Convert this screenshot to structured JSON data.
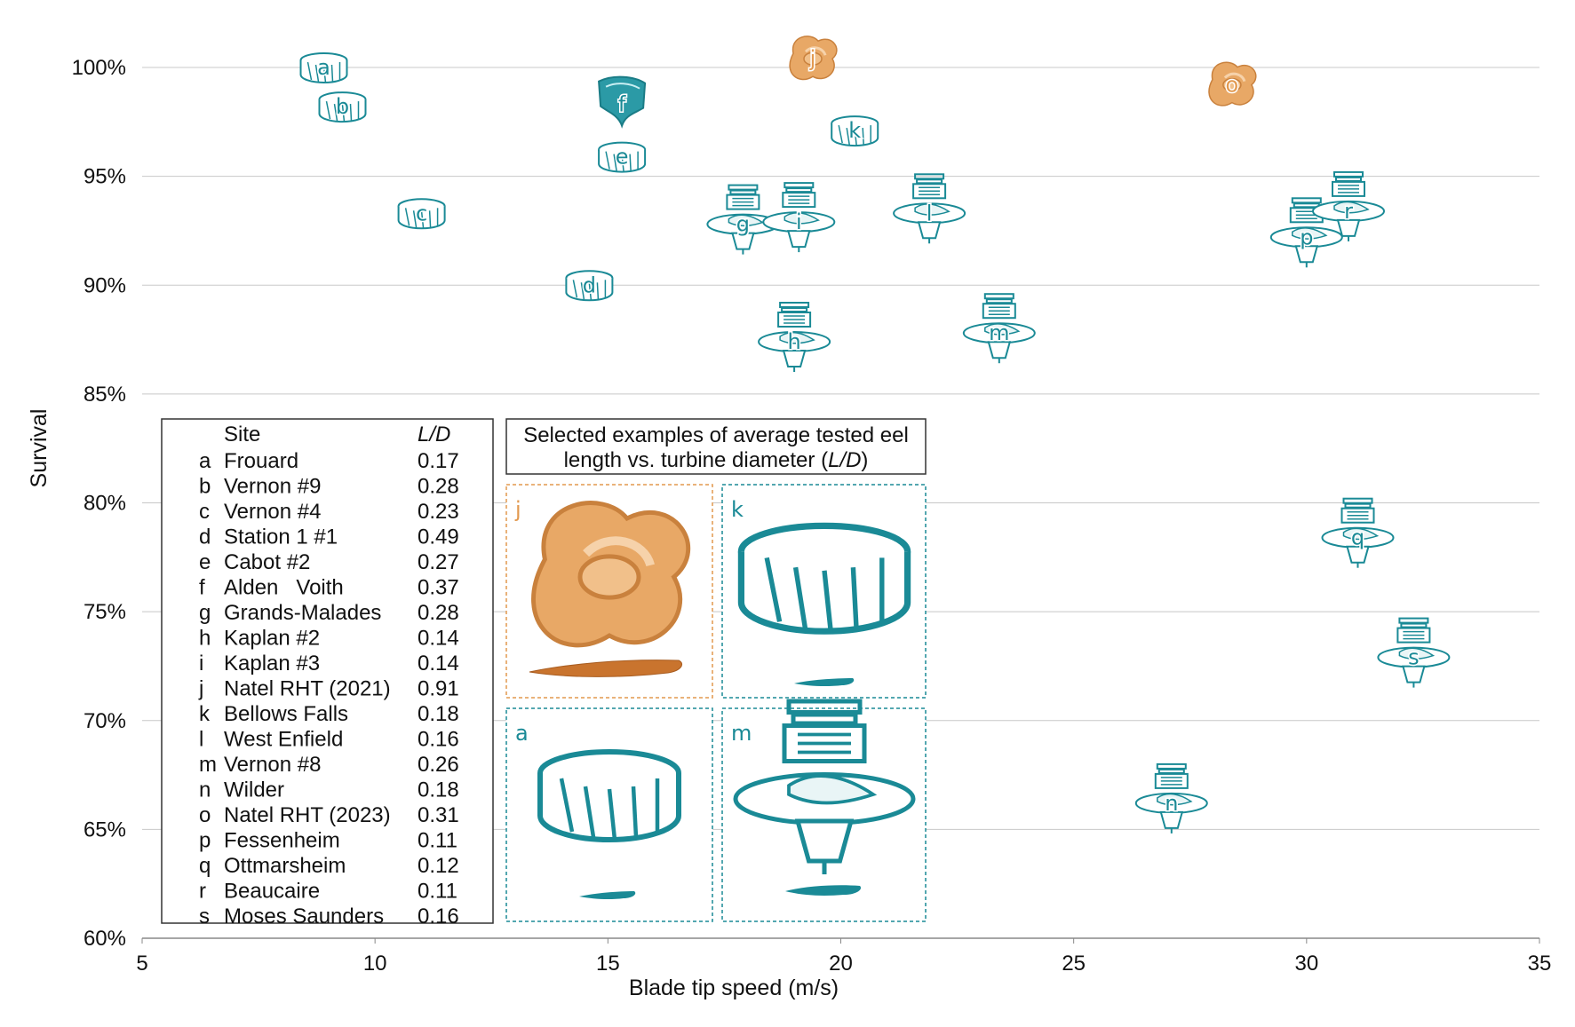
{
  "chart_data": {
    "type": "scatter",
    "title": "",
    "xlabel": "Blade tip speed (m/s)",
    "ylabel": "Survival",
    "xlim": [
      5,
      35
    ],
    "ylim": [
      60,
      100
    ],
    "x_ticks": [
      "5",
      "10",
      "15",
      "20",
      "25",
      "30",
      "35"
    ],
    "y_ticks": [
      "60%",
      "65%",
      "70%",
      "75%",
      "80%",
      "85%",
      "90%",
      "95%",
      "100%"
    ],
    "grid": "horizontal",
    "points": [
      {
        "letter": "a",
        "x": 8.9,
        "y": 100.0,
        "color": "#1a8a96",
        "icon": "francis-runner-icon"
      },
      {
        "letter": "b",
        "x": 9.3,
        "y": 98.2,
        "color": "#1a8a96",
        "icon": "francis-runner-icon"
      },
      {
        "letter": "c",
        "x": 11.0,
        "y": 93.3,
        "color": "#1a8a96",
        "icon": "francis-runner-icon"
      },
      {
        "letter": "d",
        "x": 14.6,
        "y": 90.0,
        "color": "#1a8a96",
        "icon": "francis-runner-icon"
      },
      {
        "letter": "e",
        "x": 15.3,
        "y": 95.9,
        "color": "#1a8a96",
        "icon": "francis-runner-icon"
      },
      {
        "letter": "f",
        "x": 15.3,
        "y": 98.3,
        "color": "#1a8a96",
        "icon": "alden-runner-icon"
      },
      {
        "letter": "g",
        "x": 17.9,
        "y": 92.8,
        "color": "#1a8a96",
        "icon": "kaplan-turbine-icon"
      },
      {
        "letter": "h",
        "x": 19.0,
        "y": 87.4,
        "color": "#1a8a96",
        "icon": "kaplan-turbine-icon"
      },
      {
        "letter": "i",
        "x": 19.1,
        "y": 92.9,
        "color": "#1a8a96",
        "icon": "kaplan-turbine-icon"
      },
      {
        "letter": "j",
        "x": 19.4,
        "y": 100.4,
        "color": "#e2994f",
        "icon": "rht-runner-icon"
      },
      {
        "letter": "k",
        "x": 20.3,
        "y": 97.1,
        "color": "#1a8a96",
        "icon": "francis-runner-icon"
      },
      {
        "letter": "l",
        "x": 21.9,
        "y": 93.3,
        "color": "#1a8a96",
        "icon": "kaplan-turbine-icon"
      },
      {
        "letter": "m",
        "x": 23.4,
        "y": 87.8,
        "color": "#1a8a96",
        "icon": "kaplan-turbine-icon"
      },
      {
        "letter": "n",
        "x": 27.1,
        "y": 66.2,
        "color": "#1a8a96",
        "icon": "kaplan-turbine-icon"
      },
      {
        "letter": "o",
        "x": 28.4,
        "y": 99.2,
        "color": "#e2994f",
        "icon": "rht-runner-icon"
      },
      {
        "letter": "p",
        "x": 30.0,
        "y": 92.2,
        "color": "#1a8a96",
        "icon": "kaplan-turbine-icon"
      },
      {
        "letter": "q",
        "x": 31.1,
        "y": 78.4,
        "color": "#1a8a96",
        "icon": "kaplan-turbine-icon"
      },
      {
        "letter": "r",
        "x": 30.9,
        "y": 93.4,
        "color": "#1a8a96",
        "icon": "kaplan-turbine-icon"
      },
      {
        "letter": "s",
        "x": 32.3,
        "y": 72.9,
        "color": "#1a8a96",
        "icon": "kaplan-turbine-icon"
      }
    ],
    "legend": {
      "header_site": "Site",
      "header_ld": "L/D",
      "rows": [
        {
          "letter": "a",
          "site": "Frouard",
          "ld": "0.17"
        },
        {
          "letter": "b",
          "site": "Vernon #9",
          "ld": "0.28"
        },
        {
          "letter": "c",
          "site": "Vernon #4",
          "ld": "0.23"
        },
        {
          "letter": "d",
          "site": "Station 1 #1",
          "ld": "0.49"
        },
        {
          "letter": "e",
          "site": "Cabot #2",
          "ld": "0.27"
        },
        {
          "letter": "f",
          "site": "Alden   Voith",
          "ld": "0.37"
        },
        {
          "letter": "g",
          "site": "Grands-Malades",
          "ld": "0.28"
        },
        {
          "letter": "h",
          "site": "Kaplan #2",
          "ld": "0.14"
        },
        {
          "letter": "i",
          "site": "Kaplan #3",
          "ld": "0.14"
        },
        {
          "letter": "j",
          "site": "Natel RHT (2021)",
          "ld": "0.91"
        },
        {
          "letter": "k",
          "site": "Bellows Falls",
          "ld": "0.18"
        },
        {
          "letter": "l",
          "site": "West Enfield",
          "ld": "0.16"
        },
        {
          "letter": "m",
          "site": "Vernon #8",
          "ld": "0.26"
        },
        {
          "letter": "n",
          "site": "Wilder",
          "ld": "0.18"
        },
        {
          "letter": "o",
          "site": "Natel RHT (2023)",
          "ld": "0.31"
        },
        {
          "letter": "p",
          "site": "Fessenheim",
          "ld": "0.11"
        },
        {
          "letter": "q",
          "site": "Ottmarsheim",
          "ld": "0.12"
        },
        {
          "letter": "r",
          "site": "Beaucaire",
          "ld": "0.11"
        },
        {
          "letter": "s",
          "site": "Moses Saunders",
          "ld": "0.16"
        }
      ]
    },
    "inset": {
      "title_line1": "Selected examples of average tested eel",
      "title_line2_prefix": "length vs. turbine diameter (",
      "title_line2_em": "L/D",
      "title_line2_suffix": ")",
      "panels": [
        {
          "letter": "j",
          "color": "#e2994f",
          "icon": "rht-runner-icon"
        },
        {
          "letter": "k",
          "color": "#1a8a96",
          "icon": "francis-runner-icon"
        },
        {
          "letter": "a",
          "color": "#1a8a96",
          "icon": "francis-runner-icon"
        },
        {
          "letter": "m",
          "color": "#1a8a96",
          "icon": "kaplan-turbine-icon"
        }
      ]
    },
    "colors": {
      "teal": "#1a8a96",
      "orange": "#e2994f",
      "grid": "#c8c8c8"
    }
  }
}
